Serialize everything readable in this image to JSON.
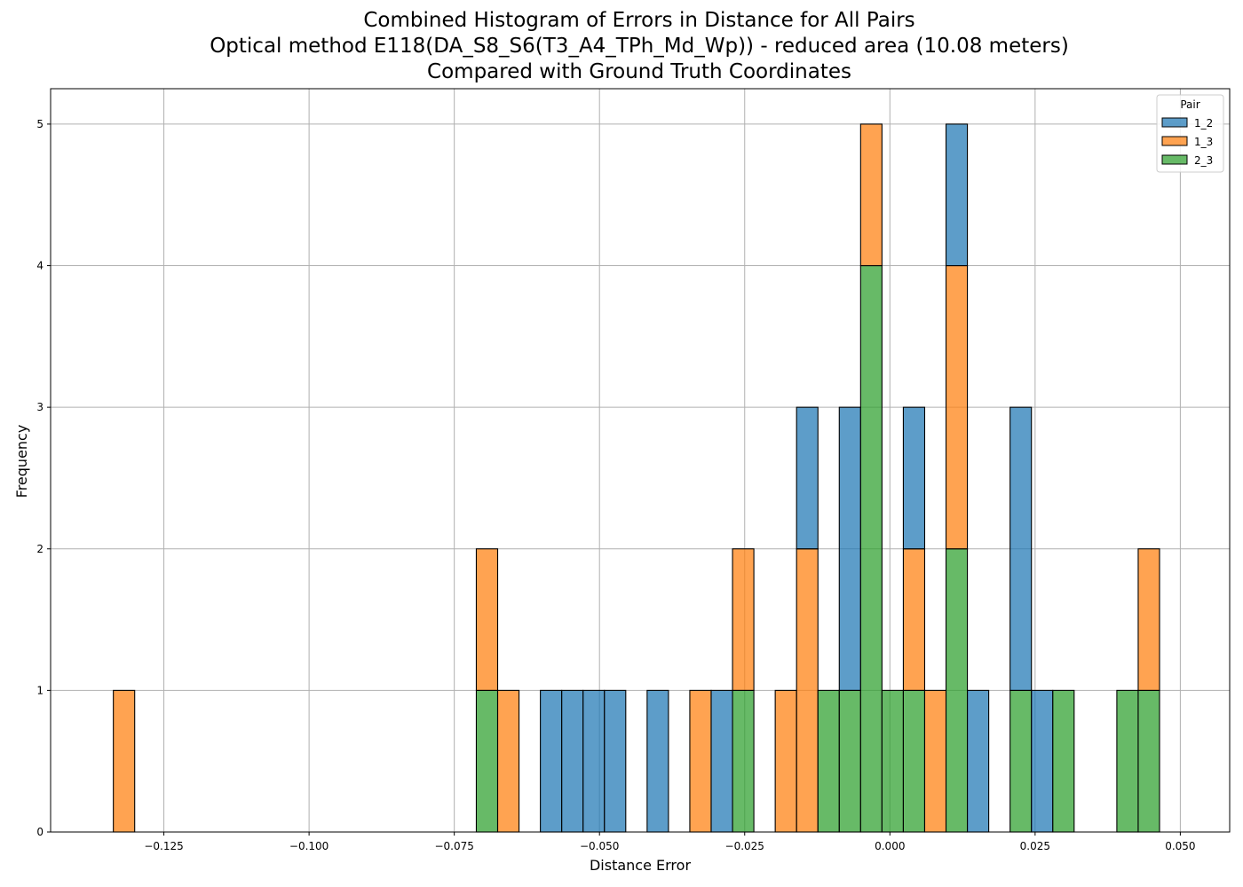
{
  "chart_data": {
    "type": "bar",
    "subtype": "stacked histogram",
    "title": [
      "Combined Histogram of Errors in Distance for All Pairs",
      "Optical method E118(DA_S8_S6(T3_A4_TPh_Md_Wp)) - reduced area (10.08 meters)",
      "Compared with Ground Truth Coordinates"
    ],
    "xlabel": "Distance Error",
    "ylabel": "Frequency",
    "xlim": [
      -0.1445,
      0.0585
    ],
    "ylim": [
      0,
      5.25
    ],
    "xticks": [
      -0.125,
      -0.1,
      -0.075,
      -0.05,
      -0.025,
      0.0,
      0.025,
      0.05
    ],
    "xtick_labels": [
      "−0.125",
      "−0.100",
      "−0.075",
      "−0.050",
      "−0.025",
      "0.000",
      "0.025",
      "0.050"
    ],
    "yticks": [
      0,
      1,
      2,
      3,
      4,
      5
    ],
    "ytick_labels": [
      "0",
      "1",
      "2",
      "3",
      "4",
      "5"
    ],
    "grid": true,
    "legend": {
      "title": "Pair",
      "placement": "top-right"
    },
    "bin_start": -0.1337,
    "bin_width": 0.003676,
    "series": [
      {
        "name": "2_3",
        "color": "#2ca02c",
        "values": [
          0,
          0,
          0,
          0,
          0,
          0,
          0,
          0,
          0,
          0,
          0,
          0,
          0,
          0,
          0,
          0,
          0,
          1,
          0,
          0,
          0,
          0,
          0,
          0,
          0,
          0,
          0,
          0,
          0,
          1,
          0,
          0,
          0,
          1,
          1,
          4,
          1,
          1,
          0,
          2,
          0,
          0,
          1,
          0,
          1,
          0,
          0,
          1,
          1
        ]
      },
      {
        "name": "1_3",
        "color": "#ff7f0e",
        "values": [
          1,
          0,
          0,
          0,
          0,
          0,
          0,
          0,
          0,
          0,
          0,
          0,
          0,
          0,
          0,
          0,
          0,
          1,
          1,
          0,
          0,
          0,
          0,
          0,
          0,
          0,
          0,
          1,
          0,
          1,
          0,
          1,
          2,
          0,
          0,
          1,
          0,
          1,
          1,
          2,
          0,
          0,
          0,
          0,
          0,
          0,
          0,
          0,
          1
        ]
      },
      {
        "name": "1_2",
        "color": "#1f77b4",
        "values": [
          0,
          0,
          0,
          0,
          0,
          0,
          0,
          0,
          0,
          0,
          0,
          0,
          0,
          0,
          0,
          0,
          0,
          0,
          0,
          0,
          1,
          1,
          1,
          1,
          0,
          1,
          0,
          0,
          1,
          0,
          0,
          0,
          1,
          0,
          2,
          0,
          0,
          1,
          0,
          1,
          1,
          0,
          2,
          1,
          0,
          0,
          0,
          0,
          0
        ]
      }
    ]
  }
}
